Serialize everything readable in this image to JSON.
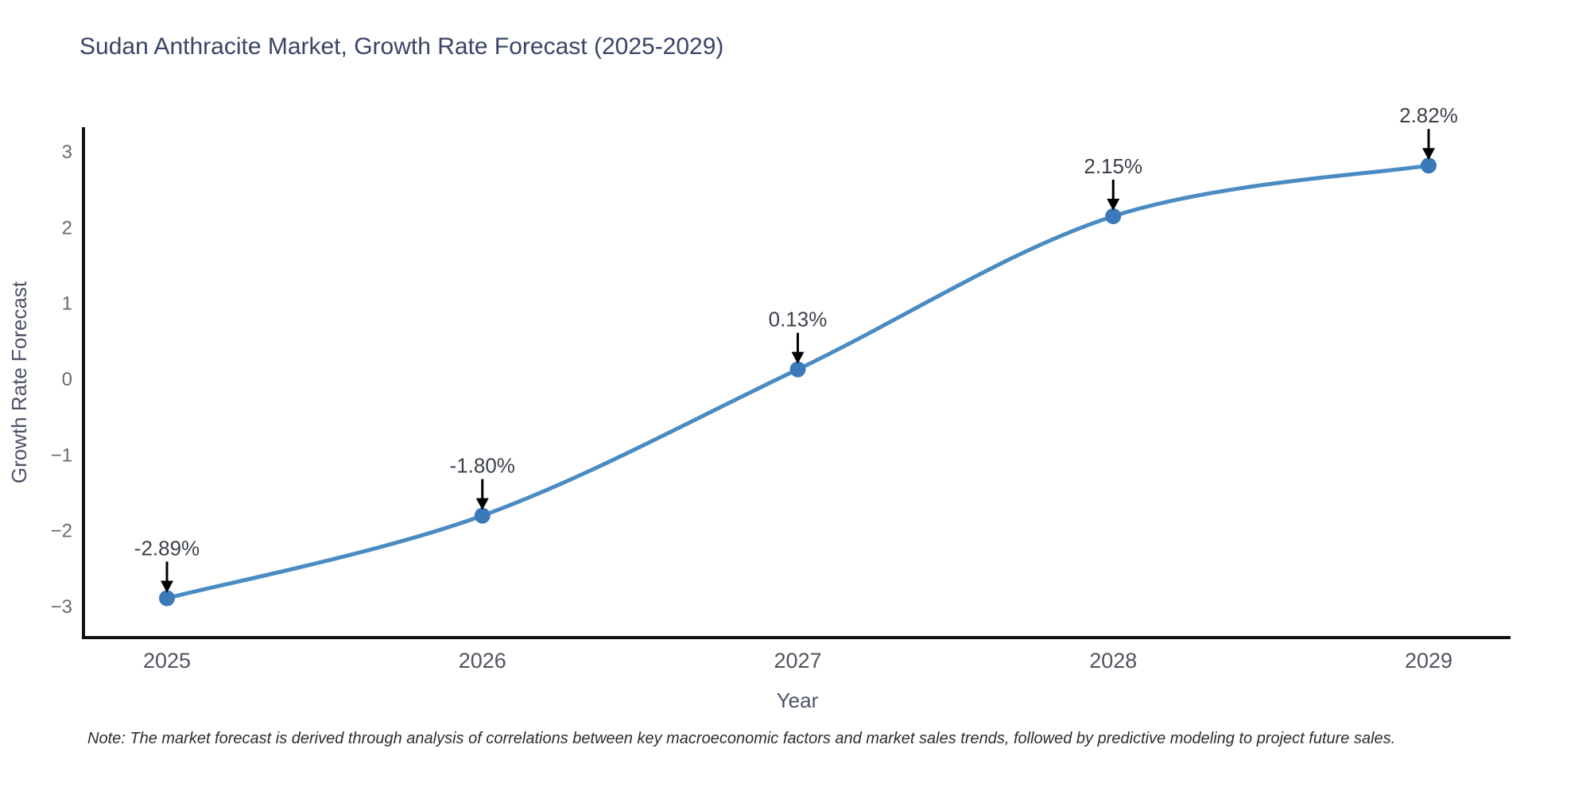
{
  "figure": {
    "note": "Note: The market forecast is derived through analysis of correlations between key macroeconomic factors and market sales trends, followed by predictive modeling to project future sales."
  },
  "chart_data": {
    "type": "line",
    "title": "Sudan Anthracite Market, Growth Rate Forecast (2025-2029)",
    "xlabel": "Year",
    "ylabel": "Growth Rate Forecast",
    "categories": [
      "2025",
      "2026",
      "2027",
      "2028",
      "2029"
    ],
    "series": [
      {
        "name": "Growth Rate Forecast",
        "values": [
          -2.89,
          -1.8,
          0.13,
          2.15,
          2.82
        ]
      }
    ],
    "point_labels": [
      "-2.89%",
      "-1.80%",
      "0.13%",
      "2.15%",
      "2.82%"
    ],
    "y_ticks": [
      3,
      2,
      1,
      0,
      -1,
      -2,
      -3
    ],
    "y_tick_labels": [
      "3",
      "2",
      "1",
      "0",
      "−1",
      "−2",
      "−3"
    ],
    "ylim": [
      -3.41,
      3.33
    ],
    "grid": false,
    "legend": "none",
    "line_shape": "spline",
    "annotations": "arrows-down-to-points",
    "colors": {
      "line": "#4a8bc2",
      "marker": "#3a7ab8",
      "arrow": "#000000",
      "axis": "#111111",
      "title": "#3a4466",
      "tick_y": "#666b73",
      "tick_x": "#4f545e",
      "axis_title": "#4d5365",
      "data_label": "#3c414b",
      "note": "#2d2d2d",
      "background": "#ffffff"
    }
  }
}
